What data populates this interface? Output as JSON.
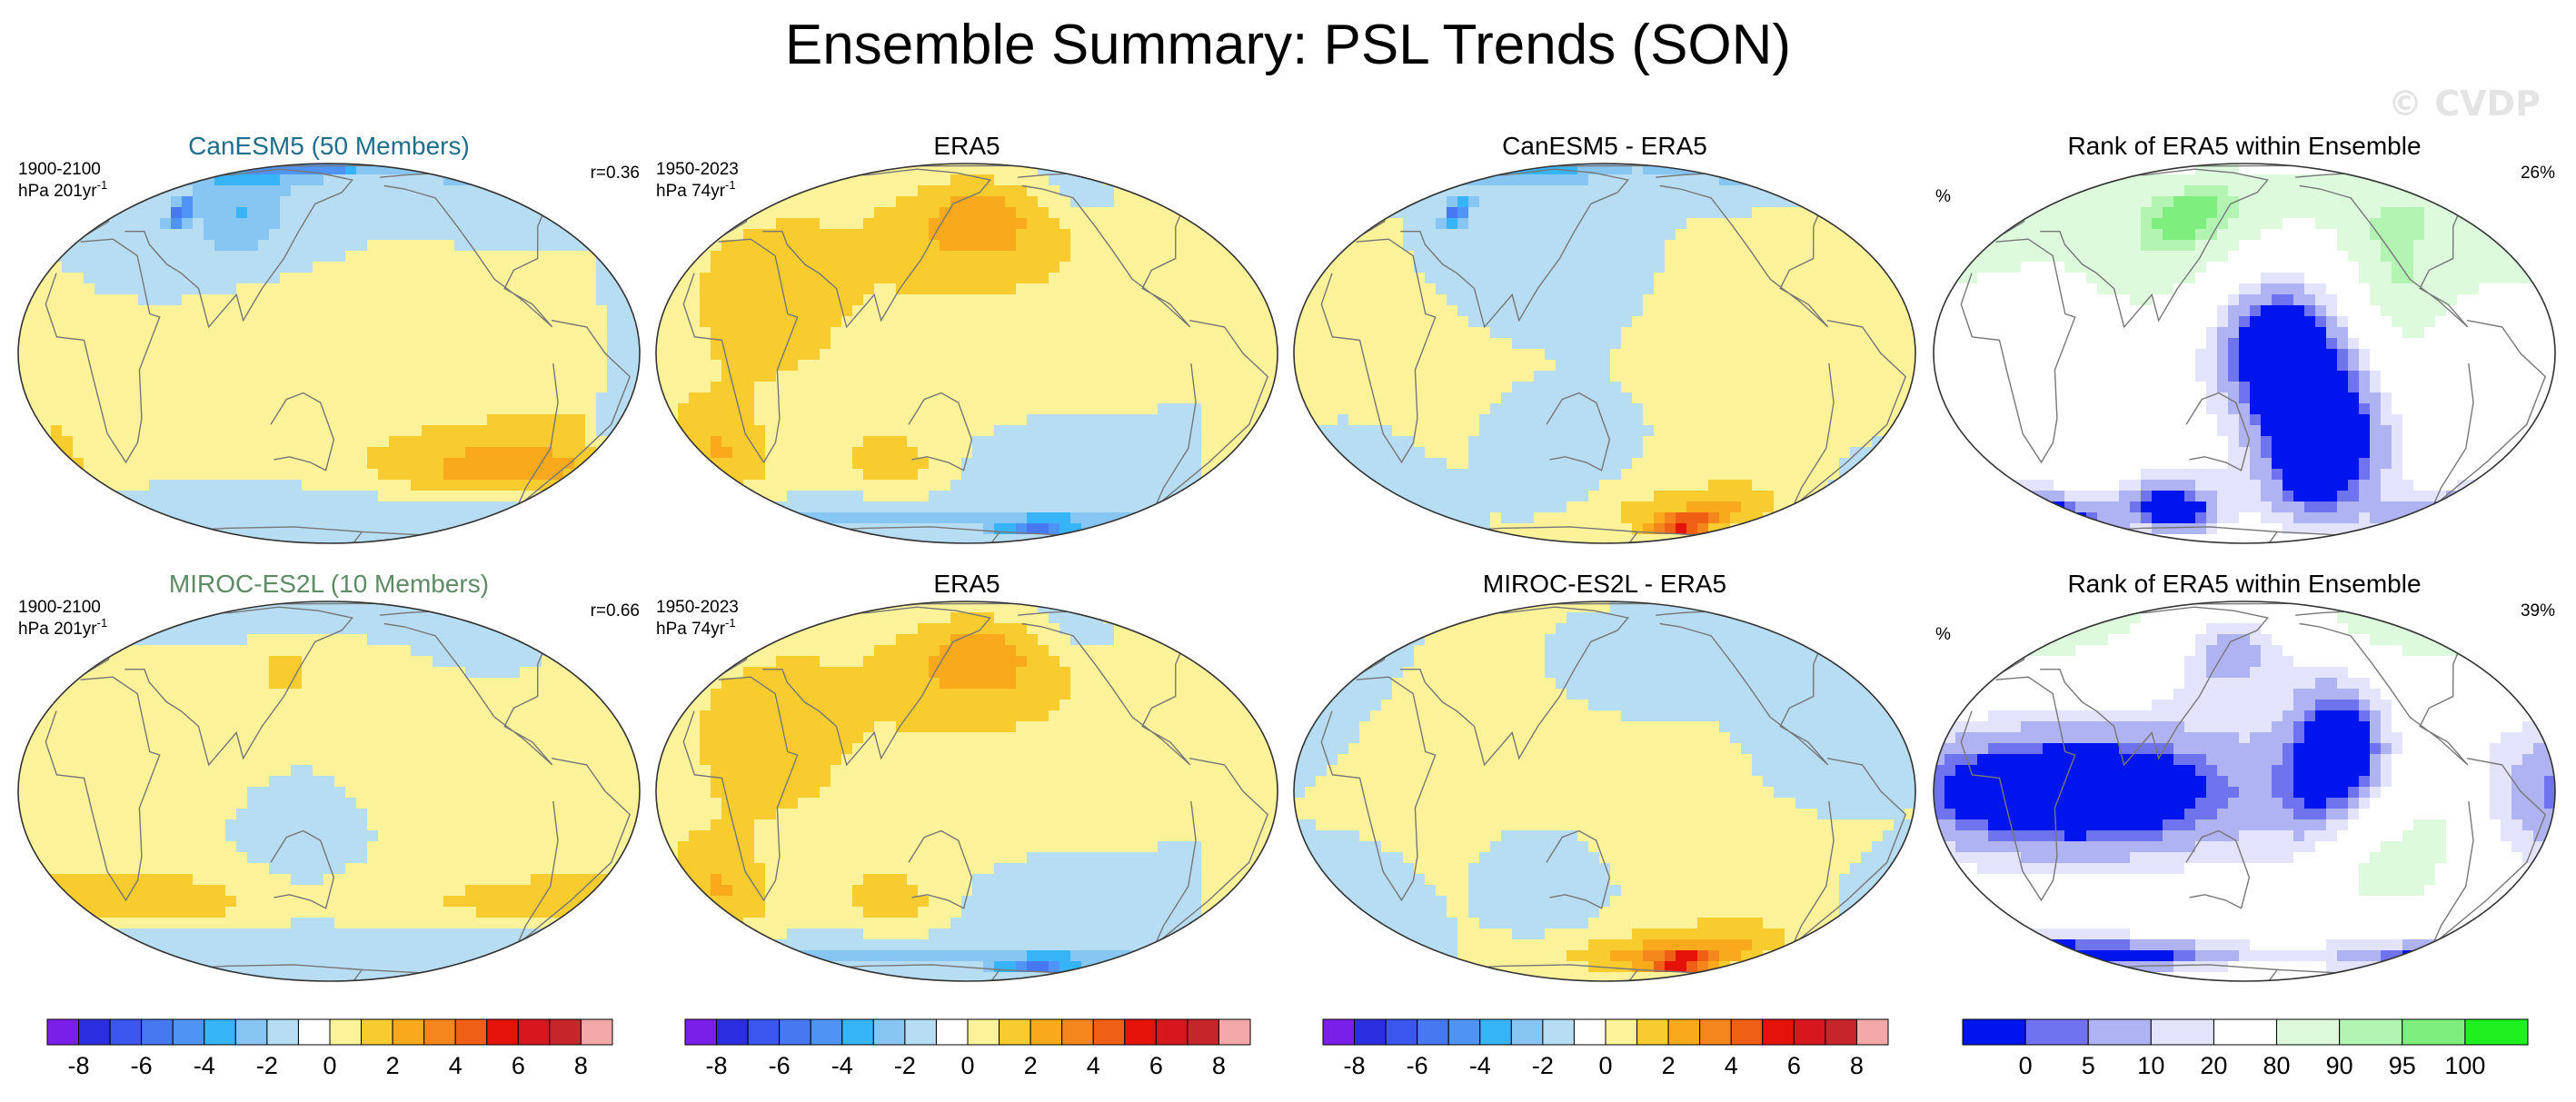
{
  "title": "Ensemble Summary: PSL Trends (SON)",
  "watermark": "© CVDP",
  "colors": {
    "land": "#ffffff",
    "coast": "#777777",
    "model1_title": "#1f6e8c",
    "model2_title": "#5f8a66"
  },
  "chart_data": [
    {
      "type": "heatmap",
      "panel": "row1-col1",
      "title": "CanESM5 (50 Members)",
      "title_color": "#1f6e8c",
      "left_top": "1900-2100",
      "left_bottom": "hPa 201yr",
      "left_bottom_sup": "-1",
      "right_top": "r=0.36",
      "colorscale": "psl",
      "field": "CanESM5 PSL trend",
      "blobs": [
        {
          "lon": 0,
          "lat": 75,
          "sx": 150,
          "sy": 10,
          "v": -4
        },
        {
          "lon": 140,
          "lat": 80,
          "sx": 30,
          "sy": 5,
          "v": -3
        },
        {
          "lon": 90,
          "lat": 45,
          "sx": 30,
          "sy": 15,
          "v": -3
        },
        {
          "lon": 45,
          "lat": 48,
          "sx": 6,
          "sy": 5,
          "v": -5
        },
        {
          "lon": 115,
          "lat": 12,
          "sx": 35,
          "sy": 12,
          "v": 1
        },
        {
          "lon": -40,
          "lat": -20,
          "sx": 90,
          "sy": 14,
          "v": 1
        },
        {
          "lon": -80,
          "lat": -40,
          "sx": 45,
          "sy": 8,
          "v": 2
        },
        {
          "lon": -150,
          "lat": -35,
          "sx": 50,
          "sy": 9,
          "v": 1
        },
        {
          "lon": 0,
          "lat": -60,
          "sx": 180,
          "sy": 8,
          "v": -2
        },
        {
          "lon": -40,
          "lat": -15,
          "sx": 8,
          "sy": 12,
          "v": -2
        }
      ]
    },
    {
      "type": "heatmap",
      "panel": "row1-col2",
      "title": "ERA5",
      "left_top": "1950-2023",
      "left_bottom": "hPa 74yr",
      "left_bottom_sup": "-1",
      "colorscale": "psl",
      "field": "ERA5 PSL trend",
      "blobs": [
        {
          "lon": 0,
          "lat": 30,
          "sx": 200,
          "sy": 30,
          "v": 1
        },
        {
          "lon": -60,
          "lat": 10,
          "sx": 60,
          "sy": 25,
          "v": -0.5
        },
        {
          "lon": 160,
          "lat": 45,
          "sx": 35,
          "sy": 15,
          "v": 2
        },
        {
          "lon": -120,
          "lat": 60,
          "sx": 25,
          "sy": 12,
          "v": -1
        },
        {
          "lon": -5,
          "lat": -30,
          "sx": 22,
          "sy": 12,
          "v": 2
        },
        {
          "lon": 100,
          "lat": -35,
          "sx": 25,
          "sy": 8,
          "v": 1.5
        },
        {
          "lon": 30,
          "lat": 10,
          "sx": 30,
          "sy": 18,
          "v": 1
        },
        {
          "lon": 0,
          "lat": -62,
          "sx": 180,
          "sy": 6,
          "v": -3
        },
        {
          "lon": -150,
          "lat": -68,
          "sx": 25,
          "sy": 5,
          "v": -4
        },
        {
          "lon": -150,
          "lat": -40,
          "sx": 40,
          "sy": 10,
          "v": -1
        }
      ]
    },
    {
      "type": "heatmap",
      "panel": "row1-col3",
      "title": "CanESM5 - ERA5",
      "colorscale": "psl",
      "field": "CanESM5 minus ERA5 PSL trend",
      "blobs": [
        {
          "lon": 0,
          "lat": 75,
          "sx": 150,
          "sy": 10,
          "v": -4
        },
        {
          "lon": 45,
          "lat": 48,
          "sx": 6,
          "sy": 5,
          "v": -5
        },
        {
          "lon": 90,
          "lat": 40,
          "sx": 35,
          "sy": 15,
          "v": -2
        },
        {
          "lon": -30,
          "lat": 10,
          "sx": 60,
          "sy": 20,
          "v": 1
        },
        {
          "lon": -120,
          "lat": -55,
          "sx": 30,
          "sy": 10,
          "v": 2
        },
        {
          "lon": -145,
          "lat": -65,
          "sx": 18,
          "sy": 5,
          "v": 5
        },
        {
          "lon": 170,
          "lat": -55,
          "sx": 30,
          "sy": 10,
          "v": 1
        },
        {
          "lon": 120,
          "lat": -35,
          "sx": 20,
          "sy": 10,
          "v": -2
        },
        {
          "lon": -10,
          "lat": -40,
          "sx": 20,
          "sy": 10,
          "v": -2
        }
      ]
    },
    {
      "type": "heatmap",
      "panel": "row1-col4",
      "title": "Rank of ERA5 within Ensemble",
      "left_top": "%",
      "right_top": "26%",
      "colorscale": "rank",
      "field": "rank percentile",
      "blobs": [
        {
          "lon": -60,
          "lat": 50,
          "sx": 90,
          "sy": 25,
          "v": 40
        },
        {
          "lon": 120,
          "lat": 40,
          "sx": 40,
          "sy": 25,
          "v": 50
        },
        {
          "lon": 160,
          "lat": 10,
          "sx": 35,
          "sy": 20,
          "v": -60
        },
        {
          "lon": -160,
          "lat": -30,
          "sx": 35,
          "sy": 25,
          "v": -60
        },
        {
          "lon": -20,
          "lat": -60,
          "sx": 60,
          "sy": 12,
          "v": -60
        },
        {
          "lon": 100,
          "lat": -55,
          "sx": 25,
          "sy": 12,
          "v": -50
        },
        {
          "lon": -120,
          "lat": 15,
          "sx": 20,
          "sy": 20,
          "v": 30
        }
      ]
    },
    {
      "type": "heatmap",
      "panel": "row2-col1",
      "title": "MIROC-ES2L (10 Members)",
      "title_color": "#5f8a66",
      "left_top": "1900-2100",
      "left_bottom": "hPa 201yr",
      "left_bottom_sup": "-1",
      "right_top": "r=0.66",
      "colorscale": "psl",
      "field": "MIROC-ES2L PSL trend",
      "blobs": [
        {
          "lon": 0,
          "lat": 20,
          "sx": 200,
          "sy": 25,
          "v": 0.5
        },
        {
          "lon": 0,
          "lat": 70,
          "sx": 120,
          "sy": 10,
          "v": -1.5
        },
        {
          "lon": -100,
          "lat": 60,
          "sx": 30,
          "sy": 15,
          "v": -1
        },
        {
          "lon": -60,
          "lat": -35,
          "sx": 80,
          "sy": 8,
          "v": 1.5
        },
        {
          "lon": 60,
          "lat": -35,
          "sx": 40,
          "sy": 8,
          "v": 1
        },
        {
          "lon": 0,
          "lat": -62,
          "sx": 180,
          "sy": 8,
          "v": -2
        },
        {
          "lon": 130,
          "lat": -10,
          "sx": 30,
          "sy": 20,
          "v": -0.5
        },
        {
          "lon": 120,
          "lat": 40,
          "sx": 15,
          "sy": 10,
          "v": 1
        }
      ]
    },
    {
      "type": "heatmap",
      "panel": "row2-col2",
      "title": "ERA5",
      "left_top": "1950-2023",
      "left_bottom": "hPa 74yr",
      "left_bottom_sup": "-1",
      "colorscale": "psl",
      "field": "ERA5 PSL trend",
      "blobs": [
        {
          "lon": 0,
          "lat": 30,
          "sx": 200,
          "sy": 30,
          "v": 1
        },
        {
          "lon": -60,
          "lat": 10,
          "sx": 60,
          "sy": 25,
          "v": -0.5
        },
        {
          "lon": 160,
          "lat": 45,
          "sx": 35,
          "sy": 15,
          "v": 2
        },
        {
          "lon": -120,
          "lat": 60,
          "sx": 25,
          "sy": 12,
          "v": -1
        },
        {
          "lon": -5,
          "lat": -30,
          "sx": 22,
          "sy": 12,
          "v": 2
        },
        {
          "lon": 100,
          "lat": -35,
          "sx": 25,
          "sy": 8,
          "v": 1.5
        },
        {
          "lon": 30,
          "lat": 10,
          "sx": 30,
          "sy": 18,
          "v": 1
        },
        {
          "lon": 0,
          "lat": -62,
          "sx": 180,
          "sy": 6,
          "v": -3
        },
        {
          "lon": -150,
          "lat": -68,
          "sx": 25,
          "sy": 5,
          "v": -4
        },
        {
          "lon": -150,
          "lat": -40,
          "sx": 40,
          "sy": 10,
          "v": -1
        }
      ]
    },
    {
      "type": "heatmap",
      "panel": "row2-col3",
      "title": "MIROC-ES2L - ERA5",
      "colorscale": "psl",
      "field": "MIROC-ES2L minus ERA5 PSL trend",
      "blobs": [
        {
          "lon": 0,
          "lat": 20,
          "sx": 200,
          "sy": 30,
          "v": 0.5
        },
        {
          "lon": -60,
          "lat": 30,
          "sx": 60,
          "sy": 25,
          "v": -1
        },
        {
          "lon": 160,
          "lat": 45,
          "sx": 30,
          "sy": 12,
          "v": -1.5
        },
        {
          "lon": -120,
          "lat": -55,
          "sx": 35,
          "sy": 10,
          "v": 2
        },
        {
          "lon": -145,
          "lat": -65,
          "sx": 18,
          "sy": 5,
          "v": 5
        },
        {
          "lon": 170,
          "lat": -60,
          "sx": 40,
          "sy": 8,
          "v": 2
        },
        {
          "lon": -10,
          "lat": -35,
          "sx": 22,
          "sy": 10,
          "v": -2
        },
        {
          "lon": 110,
          "lat": -30,
          "sx": 20,
          "sy": 10,
          "v": -1.5
        }
      ]
    },
    {
      "type": "heatmap",
      "panel": "row2-col4",
      "title": "Rank of ERA5 within Ensemble",
      "left_top": "%",
      "right_top": "39%",
      "colorscale": "rank",
      "field": "rank percentile",
      "blobs": [
        {
          "lon": -40,
          "lat": 60,
          "sx": 90,
          "sy": 15,
          "v": 40
        },
        {
          "lon": 50,
          "lat": 0,
          "sx": 100,
          "sy": 18,
          "v": -60
        },
        {
          "lon": -150,
          "lat": 10,
          "sx": 25,
          "sy": 25,
          "v": -50
        },
        {
          "lon": -140,
          "lat": -20,
          "sx": 20,
          "sy": 15,
          "v": 40
        },
        {
          "lon": 0,
          "lat": -60,
          "sx": 120,
          "sy": 8,
          "v": -60
        },
        {
          "lon": 140,
          "lat": 50,
          "sx": 30,
          "sy": 15,
          "v": -40
        },
        {
          "lon": -100,
          "lat": -10,
          "sx": 20,
          "sy": 20,
          "v": 40
        }
      ]
    }
  ],
  "colorbars": {
    "psl": {
      "levels": [
        -9,
        -8,
        -7,
        -6,
        -5,
        -4,
        -3,
        -2,
        -1,
        0,
        1,
        2,
        3,
        4,
        5,
        6,
        7,
        8,
        9
      ],
      "colors": [
        "#7a1fe8",
        "#2a2ee0",
        "#3b56ef",
        "#4877f2",
        "#4f93f5",
        "#36b4f7",
        "#87c5f2",
        "#b7ddf2",
        "#ffffff",
        "#fbf29a",
        "#f8cc2e",
        "#f8a91c",
        "#f4861d",
        "#ef5f15",
        "#e5120a",
        "#d8161e",
        "#c7252c",
        "#f5a8a8"
      ],
      "ticks": [
        "-8",
        "-6",
        "-4",
        "-2",
        "0",
        "2",
        "4",
        "6",
        "8"
      ],
      "tick_values": [
        -8,
        -6,
        -4,
        -2,
        0,
        2,
        4,
        6,
        8
      ]
    },
    "rank": {
      "levels": [
        0,
        5,
        10,
        20,
        80,
        90,
        95,
        100
      ],
      "colors": [
        "#0015ed",
        "#6f74ee",
        "#b0b3f2",
        "#e3e4fb",
        "#ffffff",
        "#ddfadd",
        "#b3f4b3",
        "#7eee7e",
        "#1ff01f"
      ],
      "ticks": [
        "0",
        "5",
        "10",
        "20",
        "80",
        "90",
        "95",
        "100"
      ]
    }
  }
}
